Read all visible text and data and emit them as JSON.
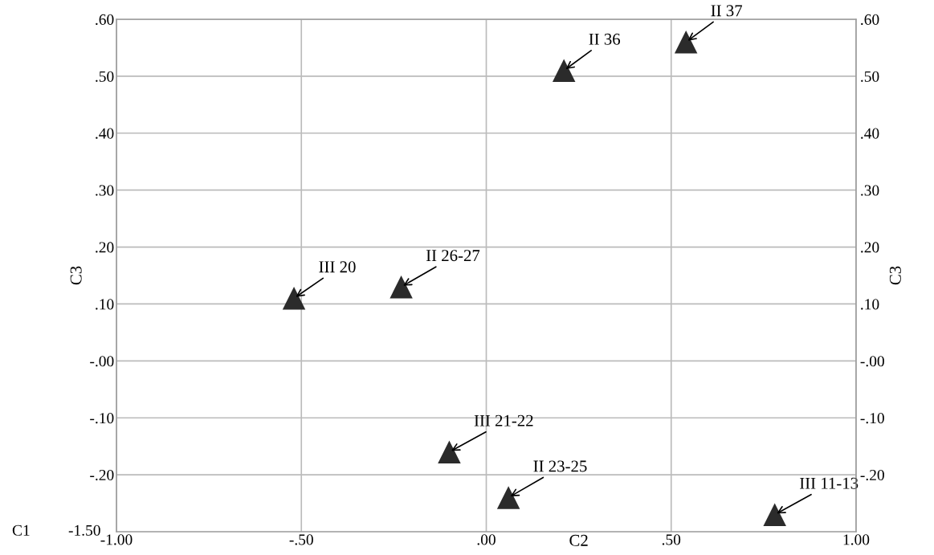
{
  "chart_data": {
    "type": "scatter",
    "xlabel": "C2",
    "ylabel": "C3",
    "y2label": "C3",
    "x": [
      -0.52,
      -0.23,
      0.21,
      0.54,
      -0.1,
      0.06,
      0.78
    ],
    "series": [
      {
        "color": "#2b2b2b",
        "values": [
          0.11,
          0.13,
          0.51,
          0.56,
          -0.16,
          -0.24,
          -0.27
        ]
      }
    ],
    "marker": "triangle",
    "grid": true,
    "xlim": [
      -1.0,
      1.0
    ],
    "xticks": [
      {
        "value": -1.0,
        "label": "-1.00"
      },
      {
        "value": -0.5,
        "label": "-.50"
      },
      {
        "value": 0.0,
        "label": ".00"
      },
      {
        "value": 0.5,
        "label": ".50"
      },
      {
        "value": 1.0,
        "label": "1.00"
      }
    ],
    "ylim": [
      -0.3,
      0.6
    ],
    "yticks": [
      {
        "value": 0.6,
        "label": ".60"
      },
      {
        "value": 0.5,
        "label": ".50"
      },
      {
        "value": 0.4,
        "label": ".40"
      },
      {
        "value": 0.3,
        "label": ".30"
      },
      {
        "value": 0.2,
        "label": ".20"
      },
      {
        "value": 0.1,
        "label": ".10"
      },
      {
        "value": 0.0,
        "label": "-.00"
      },
      {
        "value": -0.1,
        "label": "-.10"
      },
      {
        "value": -0.2,
        "label": "-.20"
      }
    ],
    "y2lim": [
      -0.3,
      0.6
    ],
    "y2ticks": [
      {
        "value": 0.6,
        "label": ".60"
      },
      {
        "value": 0.5,
        "label": ".50"
      },
      {
        "value": 0.4,
        "label": ".40"
      },
      {
        "value": 0.3,
        "label": ".30"
      },
      {
        "value": 0.2,
        "label": ".20"
      },
      {
        "value": 0.1,
        "label": ".10"
      },
      {
        "value": 0.0,
        "label": "-.00"
      },
      {
        "value": -0.1,
        "label": "-.10"
      },
      {
        "value": -0.2,
        "label": "-.20"
      }
    ],
    "annotations": [
      {
        "text": "III 20",
        "x": -0.52,
        "y": 0.11
      },
      {
        "text": "II 26-27",
        "x": -0.23,
        "y": 0.13
      },
      {
        "text": "II 36",
        "x": 0.21,
        "y": 0.51
      },
      {
        "text": "II 37",
        "x": 0.54,
        "y": 0.56
      },
      {
        "text": "III 21-22",
        "x": -0.1,
        "y": -0.16
      },
      {
        "text": "II 23-25",
        "x": 0.06,
        "y": -0.24
      },
      {
        "text": "III 11-13",
        "x": 0.78,
        "y": -0.27
      },
      "C1",
      "-1.50"
    ]
  }
}
